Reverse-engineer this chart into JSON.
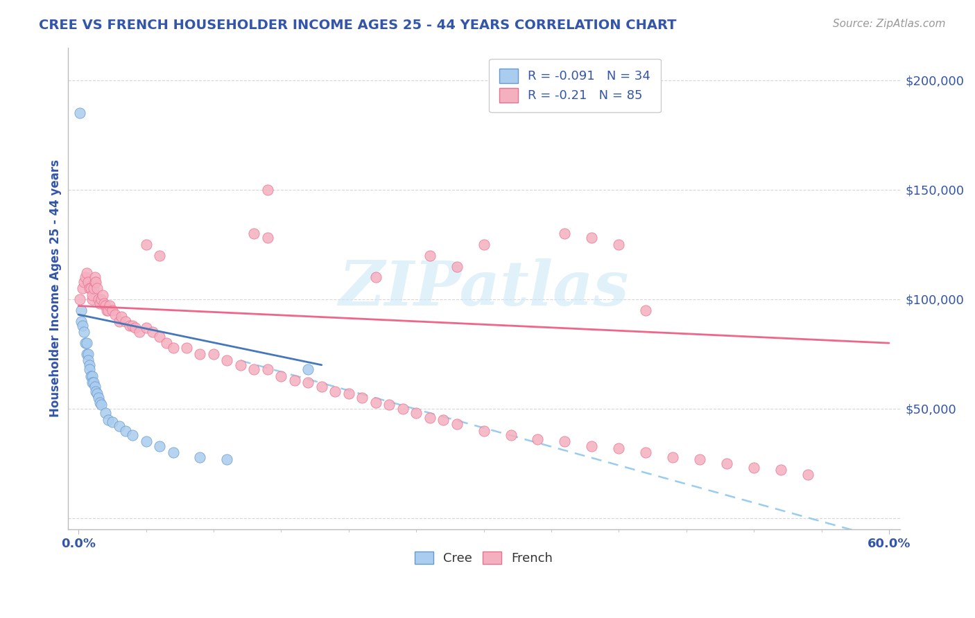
{
  "title": "CREE VS FRENCH HOUSEHOLDER INCOME AGES 25 - 44 YEARS CORRELATION CHART",
  "source": "Source: ZipAtlas.com",
  "ylabel": "Householder Income Ages 25 - 44 years",
  "xlim": [
    0.0,
    0.6
  ],
  "ylim": [
    -5000,
    215000
  ],
  "yticks": [
    0,
    50000,
    100000,
    150000,
    200000
  ],
  "xtick_labels": [
    "0.0%",
    "60.0%"
  ],
  "watermark": "ZIPatlas",
  "cree_R": -0.091,
  "cree_N": 34,
  "french_R": -0.21,
  "french_N": 85,
  "cree_color": "#aaccee",
  "french_color": "#f5b0c0",
  "cree_edge_color": "#6699cc",
  "french_edge_color": "#e87090",
  "cree_line_color": "#4477bb",
  "french_line_color": "#ee6688",
  "dashed_line_color": "#99ccee",
  "background_color": "#ffffff",
  "grid_color": "#cccccc",
  "title_color": "#3355aa",
  "axis_label_color": "#3355aa",
  "source_color": "#999999",
  "cree_scatter_x": [
    0.001,
    0.002,
    0.002,
    0.003,
    0.004,
    0.005,
    0.006,
    0.006,
    0.007,
    0.007,
    0.008,
    0.008,
    0.009,
    0.01,
    0.01,
    0.011,
    0.012,
    0.013,
    0.014,
    0.015,
    0.016,
    0.017,
    0.02,
    0.022,
    0.025,
    0.03,
    0.035,
    0.04,
    0.05,
    0.06,
    0.07,
    0.09,
    0.11,
    0.17
  ],
  "cree_scatter_y": [
    185000,
    95000,
    90000,
    88000,
    85000,
    80000,
    80000,
    75000,
    75000,
    72000,
    70000,
    68000,
    65000,
    65000,
    62000,
    62000,
    60000,
    58000,
    57000,
    55000,
    53000,
    52000,
    48000,
    45000,
    44000,
    42000,
    40000,
    38000,
    35000,
    33000,
    30000,
    28000,
    27000,
    68000
  ],
  "french_scatter_x": [
    0.001,
    0.003,
    0.004,
    0.005,
    0.006,
    0.007,
    0.008,
    0.009,
    0.01,
    0.01,
    0.011,
    0.012,
    0.012,
    0.013,
    0.014,
    0.015,
    0.016,
    0.017,
    0.018,
    0.019,
    0.02,
    0.021,
    0.022,
    0.023,
    0.025,
    0.027,
    0.03,
    0.032,
    0.035,
    0.038,
    0.04,
    0.042,
    0.045,
    0.05,
    0.055,
    0.06,
    0.065,
    0.07,
    0.08,
    0.09,
    0.1,
    0.11,
    0.12,
    0.13,
    0.14,
    0.15,
    0.16,
    0.17,
    0.18,
    0.19,
    0.2,
    0.21,
    0.22,
    0.23,
    0.24,
    0.25,
    0.26,
    0.27,
    0.28,
    0.3,
    0.32,
    0.34,
    0.36,
    0.38,
    0.4,
    0.42,
    0.44,
    0.46,
    0.48,
    0.5,
    0.52,
    0.54,
    0.13,
    0.14,
    0.36,
    0.38,
    0.4,
    0.14,
    0.3,
    0.42,
    0.05,
    0.06,
    0.22,
    0.26,
    0.28
  ],
  "french_scatter_y": [
    100000,
    105000,
    108000,
    110000,
    112000,
    108000,
    105000,
    105000,
    100000,
    102000,
    105000,
    108000,
    110000,
    108000,
    105000,
    100000,
    98000,
    100000,
    102000,
    98000,
    97000,
    95000,
    95000,
    97000,
    95000,
    93000,
    90000,
    92000,
    90000,
    88000,
    88000,
    87000,
    85000,
    87000,
    85000,
    83000,
    80000,
    78000,
    78000,
    75000,
    75000,
    72000,
    70000,
    68000,
    68000,
    65000,
    63000,
    62000,
    60000,
    58000,
    57000,
    55000,
    53000,
    52000,
    50000,
    48000,
    46000,
    45000,
    43000,
    40000,
    38000,
    36000,
    35000,
    33000,
    32000,
    30000,
    28000,
    27000,
    25000,
    23000,
    22000,
    20000,
    130000,
    128000,
    130000,
    128000,
    125000,
    150000,
    125000,
    95000,
    125000,
    120000,
    110000,
    120000,
    115000
  ]
}
